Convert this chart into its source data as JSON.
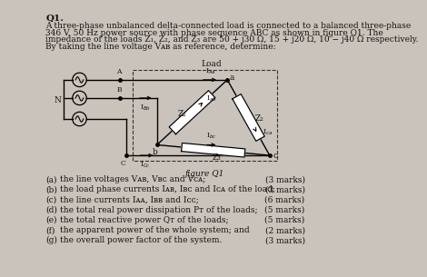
{
  "title": "Q1.",
  "para_line1": "A three-phase unbalanced delta-connected load is connected to a balanced three-phase",
  "para_line2": "346 V, 50 Hz power source with phase sequence ABC as shown in figure Q1. The",
  "para_line3": "impedance of the loads Z₁, Z₂, and Z₃ are 50 + j30 Ω, 15 + j20 Ω, 10 − j40 Ω respectively.",
  "para_line4": "By taking the line voltage Vᴀʙ as reference, determine:",
  "figure_label": "figure Q1",
  "load_label": "Load",
  "questions": [
    {
      "label": "(a)",
      "text": "the line voltages Vᴀʙ, Vʙᴄ and Vᴄᴀ;",
      "marks": "(3 marks)"
    },
    {
      "label": "(b)",
      "text": "the load phase currents Iᴀʙ, Iʙᴄ and Iᴄᴀ of the load;",
      "marks": "(3 marks)"
    },
    {
      "label": "(c)",
      "text": "the line currents Iᴀᴀ, Iʙʙ and Iᴄᴄ;",
      "marks": "(6 marks)"
    },
    {
      "label": "(d)",
      "text": "the total real power dissipation Pᴛ of the loads;",
      "marks": "(5 marks)"
    },
    {
      "label": "(e)",
      "text": "the total reactive power Qᴛ of the loads;",
      "marks": "(5 marks)"
    },
    {
      "label": "(f)",
      "text": "the apparent power of the whole system; and",
      "marks": "(2 marks)"
    },
    {
      "label": "(g)",
      "text": "the overall power factor of the system.",
      "marks": "(3 marks)"
    }
  ],
  "bg_color": "#cac3bb",
  "text_color": "#111111",
  "fs": 6.5,
  "fs_title": 7.5
}
